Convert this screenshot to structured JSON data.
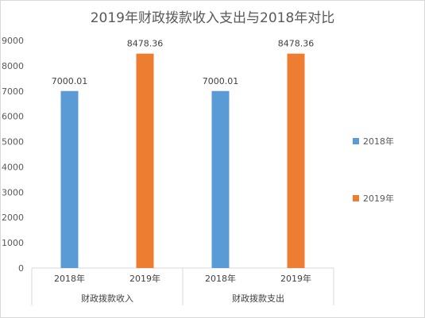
{
  "chart_data": {
    "type": "bar",
    "title": "2019年财政拨款收入支出与2018年对比",
    "xlabel": "",
    "ylabel": "",
    "ylim": [
      0,
      9000
    ],
    "yticks": [
      0,
      1000,
      2000,
      3000,
      4000,
      5000,
      6000,
      7000,
      8000,
      9000
    ],
    "grid": false,
    "legend_position": "right",
    "groups": [
      {
        "label": "财政拨款收入",
        "bars": [
          {
            "category": "2018年",
            "series": "2018年",
            "value": 7000.01,
            "value_label": "7000.01"
          },
          {
            "category": "2019年",
            "series": "2019年",
            "value": 8478.36,
            "value_label": "8478.36"
          }
        ]
      },
      {
        "label": "财政拨款支出",
        "bars": [
          {
            "category": "2018年",
            "series": "2018年",
            "value": 7000.01,
            "value_label": "7000.01"
          },
          {
            "category": "2019年",
            "series": "2019年",
            "value": 8478.36,
            "value_label": "8478.36"
          }
        ]
      }
    ],
    "series": [
      {
        "name": "2018年",
        "color": "#5b9bd5"
      },
      {
        "name": "2019年",
        "color": "#ed7d31"
      }
    ]
  }
}
